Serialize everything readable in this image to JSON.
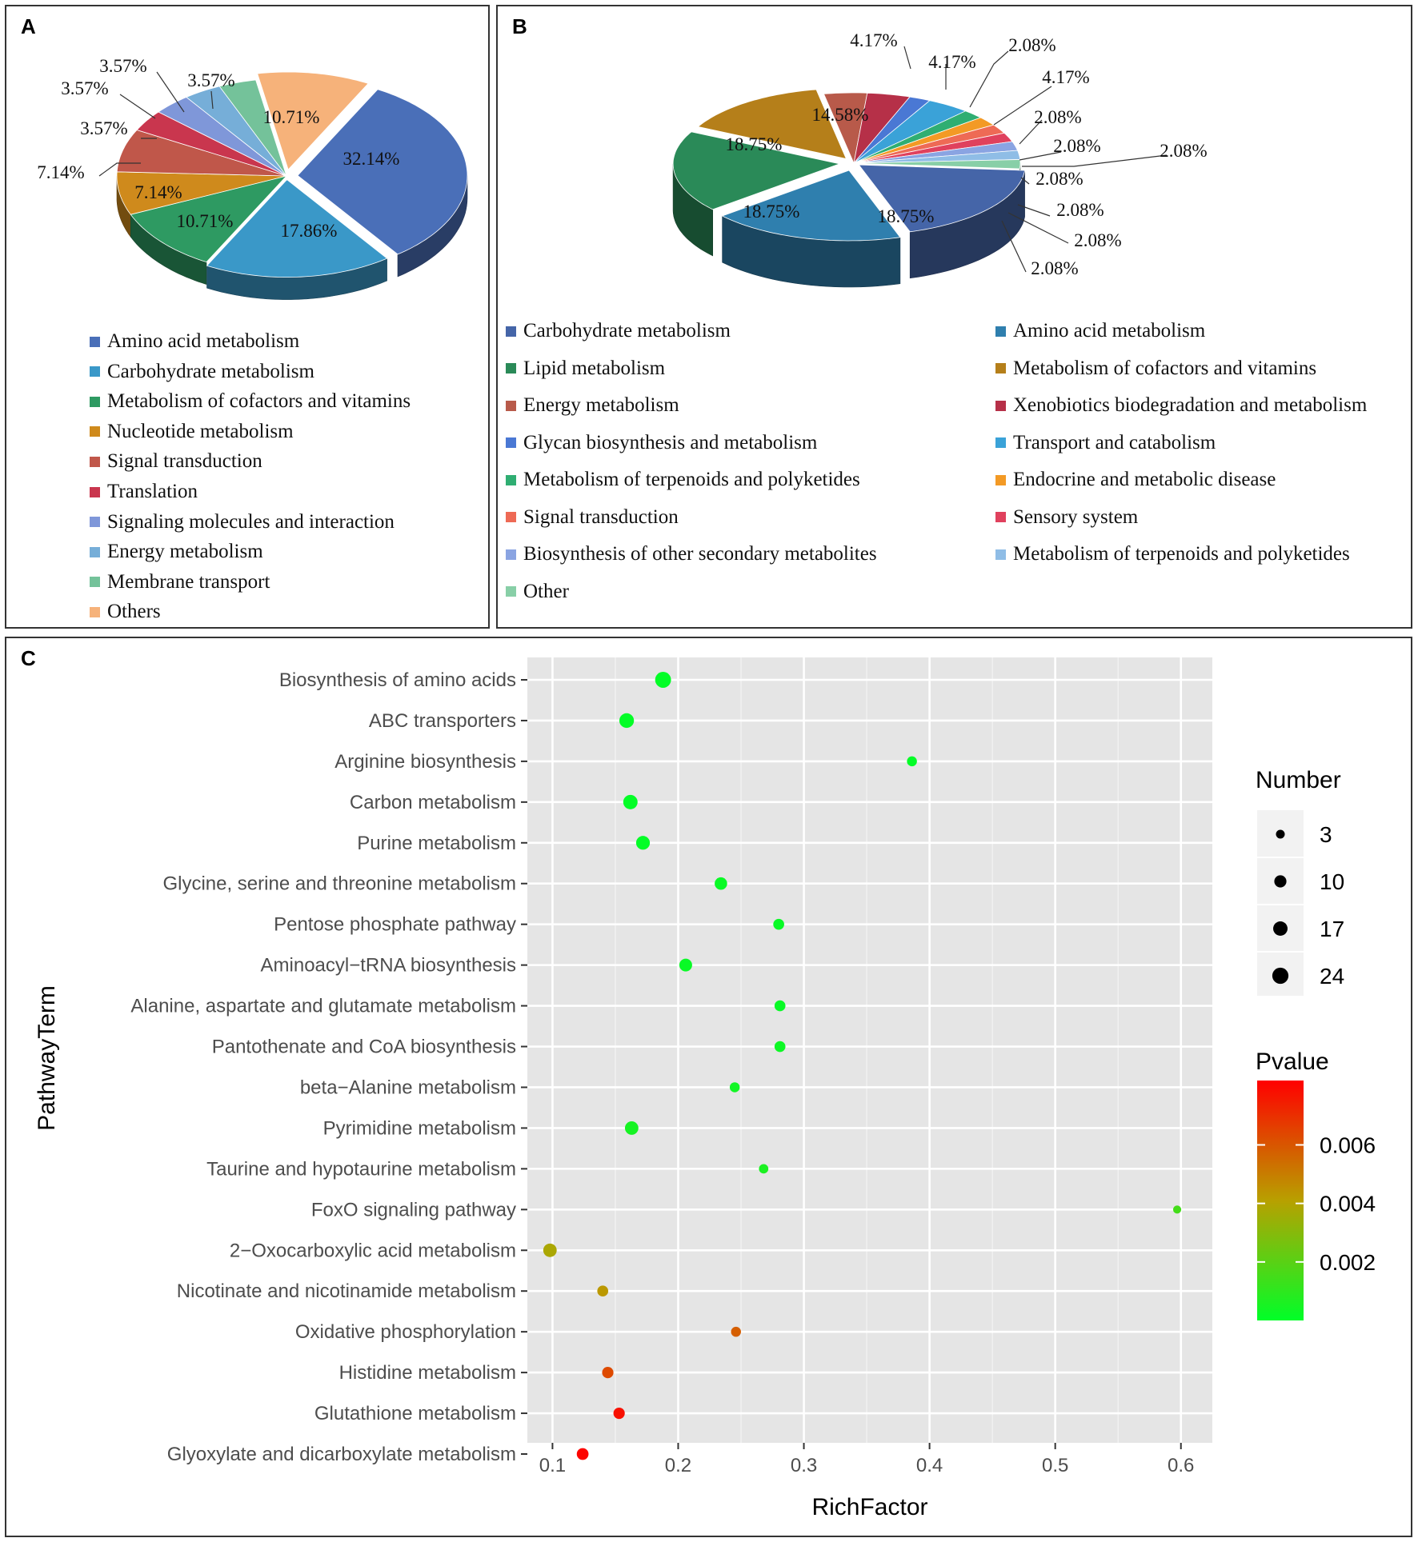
{
  "panels": {
    "a": "A",
    "b": "B",
    "c": "C"
  },
  "chart_data": [
    {
      "panel": "A",
      "type": "pie",
      "values": [
        32.14,
        17.86,
        10.71,
        7.14,
        7.14,
        3.57,
        3.57,
        3.57,
        3.57,
        10.71
      ],
      "labels": [
        "32.14%",
        "17.86%",
        "10.71%",
        "7.14%",
        "7.14%",
        "3.57%",
        "3.57%",
        "3.57%",
        "3.57%",
        "10.71%"
      ],
      "legend": [
        {
          "name": "Amino acid metabolism",
          "color": "#4a6fb8"
        },
        {
          "name": "Carbohydrate metabolism",
          "color": "#3a98c8"
        },
        {
          "name": "Metabolism of cofactors and vitamins",
          "color": "#2e9a62"
        },
        {
          "name": "Nucleotide metabolism",
          "color": "#cf8a1c"
        },
        {
          "name": "Signal transduction",
          "color": "#c0574a"
        },
        {
          "name": "Translation",
          "color": "#c9364e"
        },
        {
          "name": "Signaling molecules and interaction",
          "color": "#7f97d9"
        },
        {
          "name": "Energy metabolism",
          "color": "#76aed8"
        },
        {
          "name": "Membrane transport",
          "color": "#74c29a"
        },
        {
          "name": "Others",
          "color": "#f6b27a"
        }
      ]
    },
    {
      "panel": "B",
      "type": "pie",
      "values": [
        18.75,
        18.75,
        18.75,
        14.58,
        4.17,
        4.17,
        2.08,
        4.17,
        2.08,
        2.08,
        2.08,
        2.08,
        2.08,
        2.08,
        2.08
      ],
      "labels": [
        "18.75%",
        "18.75%",
        "18.75%",
        "14.58%",
        "4.17%",
        "4.17%",
        "2.08%",
        "4.17%",
        "2.08%",
        "2.08%",
        "2.08%",
        "2.08%",
        "2.08%",
        "2.08%",
        "2.08%"
      ],
      "legend": [
        {
          "name": "Carbohydrate metabolism",
          "color": "#4565a8"
        },
        {
          "name": "Amino acid metabolism",
          "color": "#2f7fae"
        },
        {
          "name": "Lipid metabolism",
          "color": "#2a8a58"
        },
        {
          "name": "Metabolism of cofactors and vitamins",
          "color": "#b57f1a"
        },
        {
          "name": "Energy metabolism",
          "color": "#b85a4a"
        },
        {
          "name": "Xenobiotics biodegradation and metabolism",
          "color": "#b63048"
        },
        {
          "name": "Glycan biosynthesis and metabolism",
          "color": "#4a78d4"
        },
        {
          "name": "Transport and catabolism",
          "color": "#3aa2d8"
        },
        {
          "name": "Metabolism of terpenoids and polyketides",
          "color": "#2fae72"
        },
        {
          "name": "Endocrine and metabolic disease",
          "color": "#f39a25"
        },
        {
          "name": "Signal transduction",
          "color": "#ee6a55"
        },
        {
          "name": "Sensory system",
          "color": "#e0415d"
        },
        {
          "name": "Biosynthesis of other secondary metabolites",
          "color": "#8aa4e2"
        },
        {
          "name": "Metabolism of terpenoids and polyketides",
          "color": "#8fbde6"
        },
        {
          "name": "Other",
          "color": "#88cfa7"
        }
      ]
    },
    {
      "panel": "C",
      "type": "scatter",
      "xlabel": "RichFactor",
      "ylabel": "PathwayTerm",
      "xlim": [
        0.08,
        0.625
      ],
      "xticks": [
        0.1,
        0.2,
        0.3,
        0.4,
        0.5,
        0.6
      ],
      "xtick_labels": [
        "0.1",
        "0.2",
        "0.3",
        "0.4",
        "0.5",
        "0.6"
      ],
      "grid": true,
      "terms": [
        "Biosynthesis of amino acids",
        "ABC transporters",
        "Arginine biosynthesis",
        "Carbon metabolism",
        "Purine metabolism",
        "Glycine, serine and threonine metabolism",
        "Pentose phosphate pathway",
        "Aminoacyl−tRNA biosynthesis",
        "Alanine, aspartate and glutamate metabolism",
        "Pantothenate and CoA biosynthesis",
        "beta−Alanine metabolism",
        "Pyrimidine metabolism",
        "Taurine and hypotaurine metabolism",
        "FoxO signaling pathway",
        "2−Oxocarboxylic acid metabolism",
        "Nicotinate and nicotinamide metabolism",
        "Oxidative phosphorylation",
        "Histidine metabolism",
        "Glutathione metabolism",
        "Glyoxylate and dicarboxylate metabolism"
      ],
      "rich_factor": [
        0.188,
        0.159,
        0.386,
        0.162,
        0.172,
        0.234,
        0.28,
        0.206,
        0.281,
        0.281,
        0.245,
        0.163,
        0.268,
        0.597,
        0.098,
        0.14,
        0.246,
        0.144,
        0.153,
        0.124
      ],
      "number": [
        23,
        18,
        5,
        17,
        15,
        11,
        7,
        12,
        7,
        7,
        5,
        14,
        4,
        2,
        14,
        7,
        5,
        8,
        8,
        9
      ],
      "pvalue": [
        0.0001,
        0.0001,
        0.0001,
        0.0001,
        0.0001,
        0.0002,
        0.0002,
        0.0002,
        0.0002,
        0.0003,
        0.0004,
        0.0005,
        0.0006,
        0.0015,
        0.0038,
        0.0043,
        0.0058,
        0.0063,
        0.0078,
        0.0081
      ],
      "size_legend": {
        "title": "Number",
        "values": [
          3,
          10,
          17,
          24
        ],
        "labels": [
          "3",
          "10",
          "17",
          "24"
        ]
      },
      "color_legend": {
        "title": "Pvalue",
        "ticks": [
          0.002,
          0.004,
          0.006
        ],
        "labels": [
          "0.002",
          "0.004",
          "0.006"
        ],
        "range": [
          0.0,
          0.0082
        ],
        "low_color": "#00ff28",
        "high_color": "#ff0000"
      }
    }
  ]
}
